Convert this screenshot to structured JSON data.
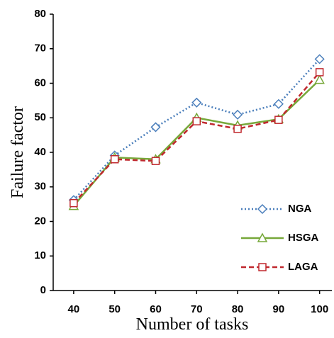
{
  "chart_data": {
    "type": "line",
    "xlabel": "Number of tasks",
    "ylabel": "Failure factor",
    "x": [
      40,
      50,
      60,
      70,
      80,
      90,
      100
    ],
    "xlim": [
      35,
      103
    ],
    "xticks": [
      40,
      50,
      60,
      70,
      80,
      90,
      100
    ],
    "ylim": [
      0,
      80
    ],
    "yticks": [
      0,
      10,
      20,
      30,
      40,
      50,
      60,
      70,
      80
    ],
    "grid": false,
    "legend": "lower right",
    "series": [
      {
        "name": "NGA",
        "color": "#4a7ebb",
        "marker": "diamond",
        "dash": "dotted",
        "values": [
          26.2,
          39.1,
          47.3,
          54.4,
          50.9,
          54,
          67
        ]
      },
      {
        "name": "HSGA",
        "color": "#77a83a",
        "marker": "triangle",
        "dash": "solid",
        "values": [
          24.5,
          38.5,
          38,
          50,
          47.8,
          49.6,
          61
        ]
      },
      {
        "name": "LAGA",
        "color": "#c0282e",
        "marker": "square",
        "dash": "dashed",
        "values": [
          25.3,
          38,
          37.5,
          49,
          46.8,
          49.4,
          63.2
        ]
      }
    ]
  }
}
